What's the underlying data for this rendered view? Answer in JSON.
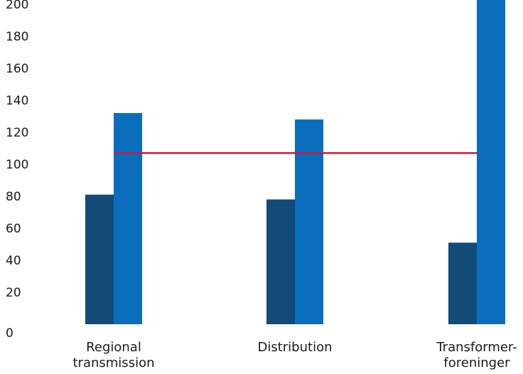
{
  "chart_data": {
    "type": "bar",
    "title": "",
    "xlabel": "",
    "ylabel": "",
    "ylim": [
      0,
      210
    ],
    "yticks": [
      0,
      20,
      40,
      60,
      80,
      100,
      120,
      140,
      160,
      180,
      200
    ],
    "grid": false,
    "legend": "none",
    "categories": [
      [
        "Regional",
        "transmission"
      ],
      [
        "Distribution"
      ],
      [
        "Transformer-",
        "foreninger"
      ]
    ],
    "series": [
      {
        "values": [
          81,
          78,
          51
        ],
        "color": "#124a78"
      },
      {
        "values": [
          132,
          128,
          210
        ],
        "color": "#0a6ebd"
      }
    ],
    "reference_line": {
      "value": 107,
      "color": "#d0193f"
    }
  }
}
